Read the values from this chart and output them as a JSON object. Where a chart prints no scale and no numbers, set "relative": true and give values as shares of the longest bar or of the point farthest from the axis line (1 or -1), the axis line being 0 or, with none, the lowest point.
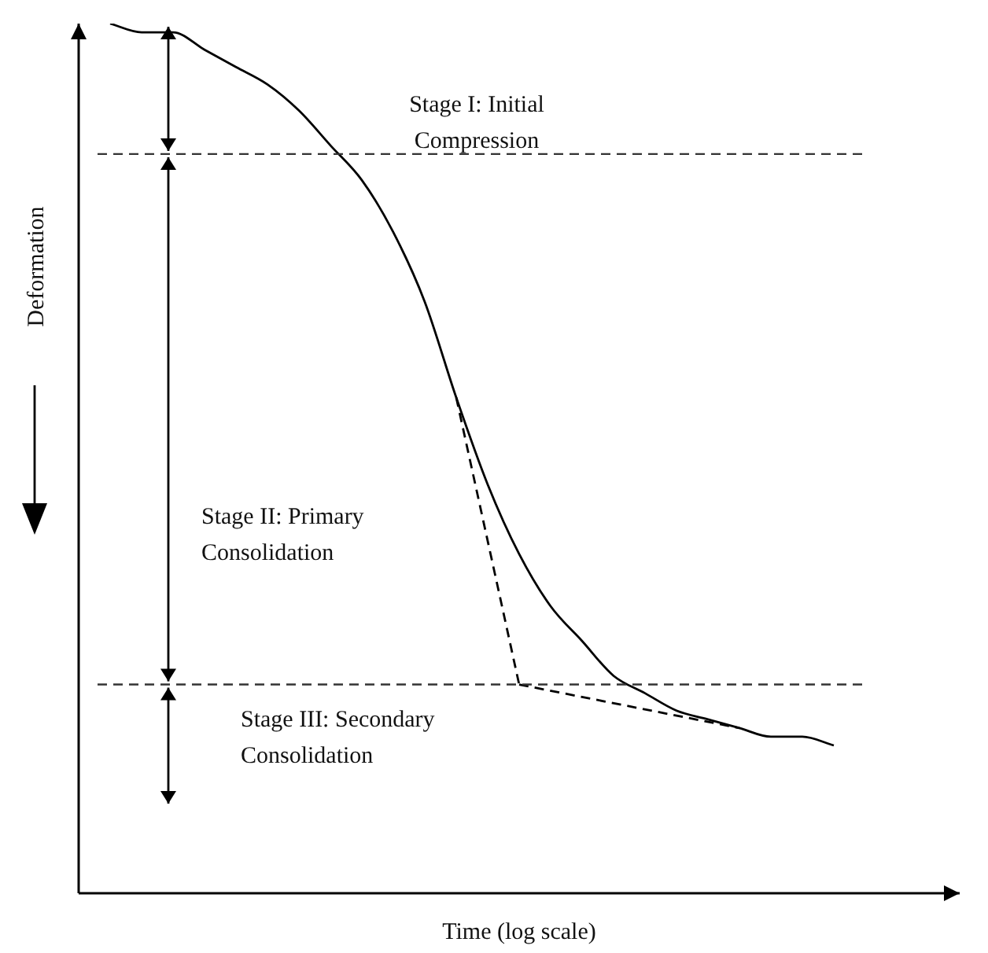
{
  "chart_data": {
    "type": "line",
    "relative": true,
    "xlabel": "Time (log scale)",
    "ylabel": "Deformation",
    "marker": "none",
    "legend": false,
    "categories": [
      null,
      null,
      null,
      null,
      null,
      null,
      null,
      null,
      null,
      null,
      null,
      null,
      null,
      null,
      null,
      null,
      null,
      null,
      null,
      null,
      null,
      null,
      null,
      null,
      null,
      null,
      null,
      null,
      null
    ],
    "series": [
      {
        "color": "#000000",
        "line_style": "solid",
        "values": [
          null,
          1.0,
          0.99,
          0.99,
          0.97,
          0.95,
          0.93,
          0.9,
          0.86,
          0.82,
          0.76,
          0.68,
          0.57,
          0.47,
          0.39,
          0.33,
          0.29,
          0.25,
          0.23,
          0.21,
          0.2,
          0.19,
          0.18,
          0.18,
          0.17,
          null,
          null,
          null,
          null
        ]
      },
      {
        "color": "#000000",
        "line_style": "dashed",
        "values": [
          null,
          null,
          null,
          null,
          null,
          null,
          null,
          null,
          null,
          null,
          null,
          null,
          0.57,
          null,
          0.24,
          null,
          null,
          null,
          null,
          null,
          null,
          null,
          null,
          null,
          null,
          null,
          null,
          null,
          null
        ]
      },
      {
        "color": "#000000",
        "line_style": "dashed",
        "values": [
          null,
          null,
          null,
          null,
          null,
          null,
          null,
          null,
          null,
          null,
          null,
          null,
          null,
          null,
          0.24,
          null,
          null,
          null,
          null,
          null,
          null,
          0.19,
          null,
          null,
          null,
          null,
          null,
          null,
          null
        ]
      }
    ],
    "ref_lines": [
      {
        "axis": "y",
        "value": 0.85,
        "color": "#333333",
        "line_style": "dashed"
      },
      {
        "axis": "y",
        "value": 0.24,
        "color": "#333333",
        "line_style": "dashed"
      }
    ],
    "annotations": [
      "Stage I: Initial Compression",
      "Stage II: Primary Consolidation",
      "Stage III: Secondary Consolidation"
    ]
  }
}
